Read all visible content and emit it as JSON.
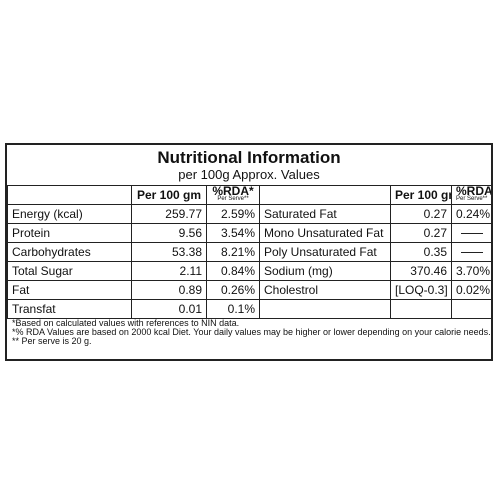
{
  "title": "Nutritional Information",
  "subtitle": "per 100g Approx. Values",
  "headers": {
    "per100": "Per 100 gm",
    "rda": "%RDA*",
    "serve": "Per Serve**"
  },
  "left_rows": [
    {
      "name": "Energy (kcal)",
      "value": "259.77",
      "rda": "2.59%"
    },
    {
      "name": "Protein",
      "value": "9.56",
      "rda": "3.54%"
    },
    {
      "name": "Carbohydrates",
      "value": "53.38",
      "rda": "8.21%"
    },
    {
      "name": "Total Sugar",
      "value": "2.11",
      "rda": "0.84%"
    },
    {
      "name": "Fat",
      "value": "0.89",
      "rda": "0.26%"
    },
    {
      "name": "Transfat",
      "value": "0.01",
      "rda": "0.1%"
    }
  ],
  "right_rows": [
    {
      "name": "Saturated Fat",
      "value": "0.27",
      "rda": "0.24%"
    },
    {
      "name": "Mono Unsaturated Fat",
      "value": "0.27",
      "rda": ""
    },
    {
      "name": "Poly Unsaturated Fat",
      "value": "0.35",
      "rda": ""
    },
    {
      "name": "Sodium (mg)",
      "value": "370.46",
      "rda": "3.70%"
    },
    {
      "name": "Cholestrol",
      "value": "[LOQ-0.3]",
      "rda": "0.02%"
    }
  ],
  "notes": [
    "*Based on calculated values with references to NIN data.",
    "*% RDA Values are based on 2000 kcal Diet. Your daily values may be higher or lower depending on your calorie needs.",
    "** Per serve is 20 g."
  ]
}
